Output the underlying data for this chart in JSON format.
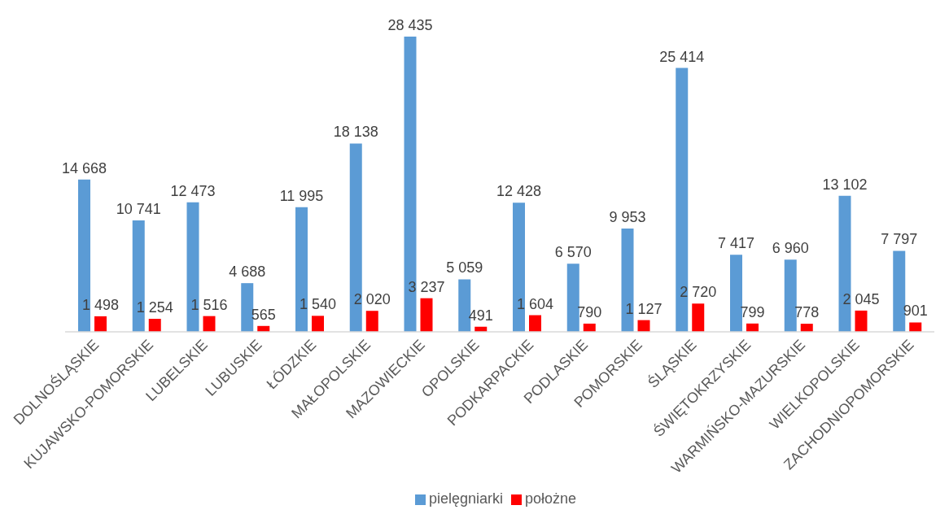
{
  "chart_data": {
    "type": "bar",
    "categories": [
      "DOLNOŚLĄSKIE",
      "KUJAWSKO-POMORSKIE",
      "LUBELSKIE",
      "LUBUSKIE",
      "ŁÓDZKIE",
      "MAŁOPOLSKIE",
      "MAZOWIECKIE",
      "OPOLSKIE",
      "PODKARPACKIE",
      "PODLASKIE",
      "POMORSKIE",
      "ŚLĄSKIE",
      "ŚWIĘTOKRZYSKIE",
      "WARMIŃSKO-MAZURSKIE",
      "WIELKOPOLSKIE",
      "ZACHODNIOPOMORSKIE"
    ],
    "series": [
      {
        "name": "pielęgniarki",
        "color": "#5b9bd5",
        "values": [
          14668,
          10741,
          12473,
          4688,
          11995,
          18138,
          28435,
          5059,
          12428,
          6570,
          9953,
          25414,
          7417,
          6960,
          13102,
          7797
        ],
        "value_labels": [
          "14 668",
          "10 741",
          "12 473",
          "4 688",
          "11 995",
          "18 138",
          "28 435",
          "5 059",
          "12 428",
          "6 570",
          "9 953",
          "25 414",
          "7 417",
          "6 960",
          "13 102",
          "7 797"
        ]
      },
      {
        "name": "położne",
        "color": "#ff0000",
        "values": [
          1498,
          1254,
          1516,
          565,
          1540,
          2020,
          3237,
          491,
          1604,
          790,
          1127,
          2720,
          799,
          778,
          2045,
          901
        ],
        "value_labels": [
          "1 498",
          "1 254",
          "1 516",
          "565",
          "1 540",
          "2 020",
          "3 237",
          "491",
          "1 604",
          "790",
          "1 127",
          "2 720",
          "799",
          "778",
          "2 045",
          "901"
        ]
      }
    ],
    "legend": "bottom"
  }
}
